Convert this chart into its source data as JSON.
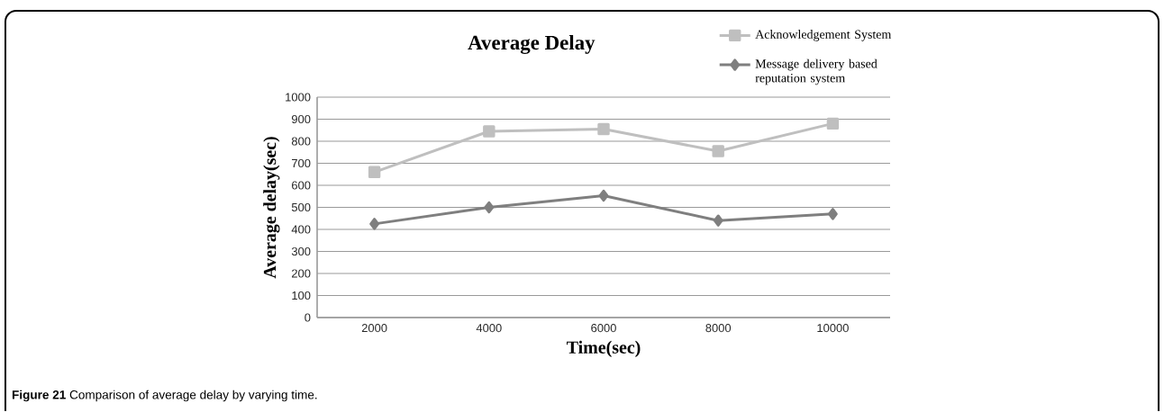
{
  "chart_data": {
    "type": "line",
    "title": "Average Delay",
    "xlabel": "Time(sec)",
    "ylabel": "Average delay(sec)",
    "categories": [
      "2000",
      "4000",
      "6000",
      "8000",
      "10000"
    ],
    "series": [
      {
        "name": "Acknowledgement System",
        "color": "#bfbfbf",
        "marker": "square",
        "values": [
          660,
          845,
          855,
          755,
          880
        ]
      },
      {
        "name": "Message delivery based reputation system",
        "color": "#7f7f7f",
        "marker": "diamond",
        "values": [
          425,
          500,
          553,
          440,
          470
        ]
      }
    ],
    "ylim": [
      0,
      1000
    ],
    "yticks": [
      0,
      100,
      200,
      300,
      400,
      500,
      600,
      700,
      800,
      900,
      1000
    ],
    "grid": "y",
    "legend": "top right",
    "line_style": "solid",
    "annotations": [
      "**Figure 21** Comparison of average delay by varying time."
    ]
  }
}
